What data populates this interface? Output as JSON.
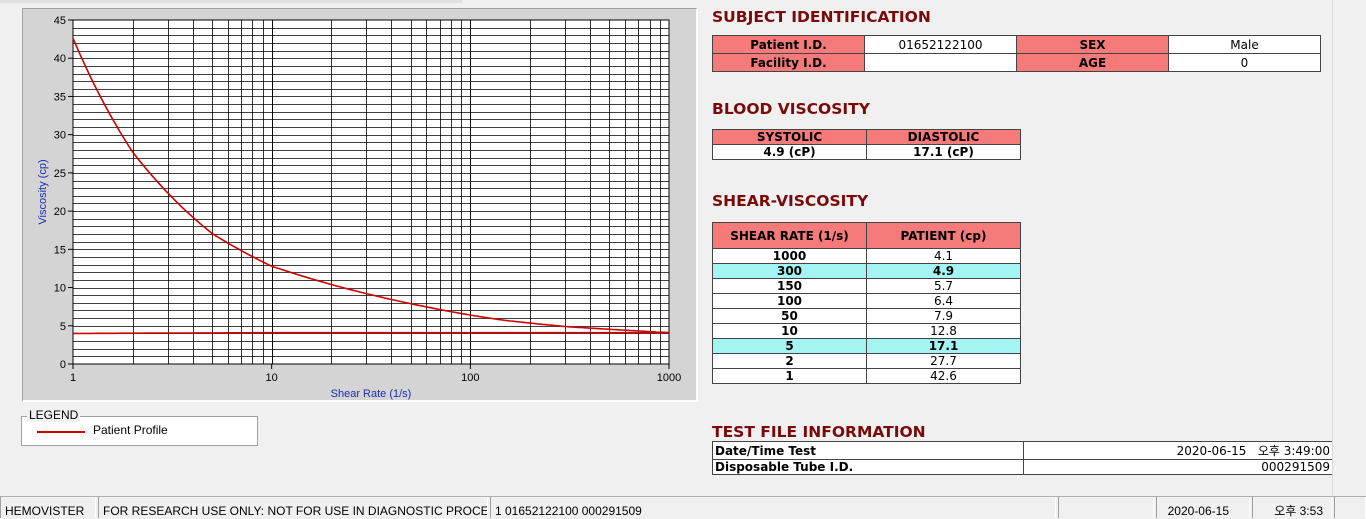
{
  "chart_data": {
    "type": "line",
    "xlabel": "Shear Rate (1/s)",
    "ylabel": "Viscosity (cp)",
    "x_scale": "log",
    "xlim": [
      1,
      1000
    ],
    "ylim": [
      0,
      45
    ],
    "x_ticks": [
      "1",
      "10",
      "100",
      "1000"
    ],
    "y_ticks": [
      "0",
      "5",
      "10",
      "15",
      "20",
      "25",
      "30",
      "35",
      "40",
      "45"
    ],
    "grid": true,
    "series": [
      {
        "name": "Patient Profile",
        "color": "#d00000",
        "x": [
          1,
          2,
          5,
          10,
          50,
          100,
          150,
          300,
          1000
        ],
        "y": [
          42.6,
          27.7,
          17.1,
          12.8,
          7.9,
          6.4,
          5.7,
          4.9,
          4.1
        ]
      },
      {
        "color": "#d00000",
        "x": [
          1,
          10,
          100,
          1000
        ],
        "y": [
          4.0,
          4.1,
          4.1,
          4.1
        ]
      }
    ]
  },
  "legend": {
    "title": "LEGEND",
    "items": [
      {
        "label": "Patient Profile",
        "color": "#d00000"
      }
    ]
  },
  "subject": {
    "heading": "SUBJECT IDENTIFICATION",
    "patient_id_label": "Patient I.D.",
    "patient_id": "01652122100",
    "sex_label": "SEX",
    "sex": "Male",
    "facility_label": "Facility I.D.",
    "facility": "",
    "age_label": "AGE",
    "age": "0"
  },
  "blood": {
    "heading": "BLOOD VISCOSITY",
    "systolic_label": "SYSTOLIC",
    "systolic": "4.9 (cP)",
    "diastolic_label": "DIASTOLIC",
    "diastolic": "17.1 (cP)"
  },
  "shear": {
    "heading": "SHEAR-VISCOSITY",
    "col_rate": "SHEAR RATE (1/s)",
    "col_patient": "PATIENT (cp)",
    "rows": [
      {
        "rate": "1000",
        "value": "4.1",
        "hl": false
      },
      {
        "rate": "300",
        "value": "4.9",
        "hl": true
      },
      {
        "rate": "150",
        "value": "5.7",
        "hl": false
      },
      {
        "rate": "100",
        "value": "6.4",
        "hl": false
      },
      {
        "rate": "50",
        "value": "7.9",
        "hl": false
      },
      {
        "rate": "10",
        "value": "12.8",
        "hl": false
      },
      {
        "rate": "5",
        "value": "17.1",
        "hl": true
      },
      {
        "rate": "2",
        "value": "27.7",
        "hl": false
      },
      {
        "rate": "1",
        "value": "42.6",
        "hl": false
      }
    ]
  },
  "testfile": {
    "heading": "TEST FILE INFORMATION",
    "date_label": "Date/Time Test",
    "date_value": "2020-06-15   오후 3:49:00",
    "tube_label": "Disposable Tube I.D.",
    "tube_value": "000291509"
  },
  "status": {
    "app": "HEMOVISTER",
    "notice": "FOR RESEARCH USE ONLY: NOT FOR USE IN DIAGNOSTIC PROCEDURES",
    "record": "1  01652122100  000291509",
    "date": "2020-06-15",
    "time": "오후 3:53"
  }
}
